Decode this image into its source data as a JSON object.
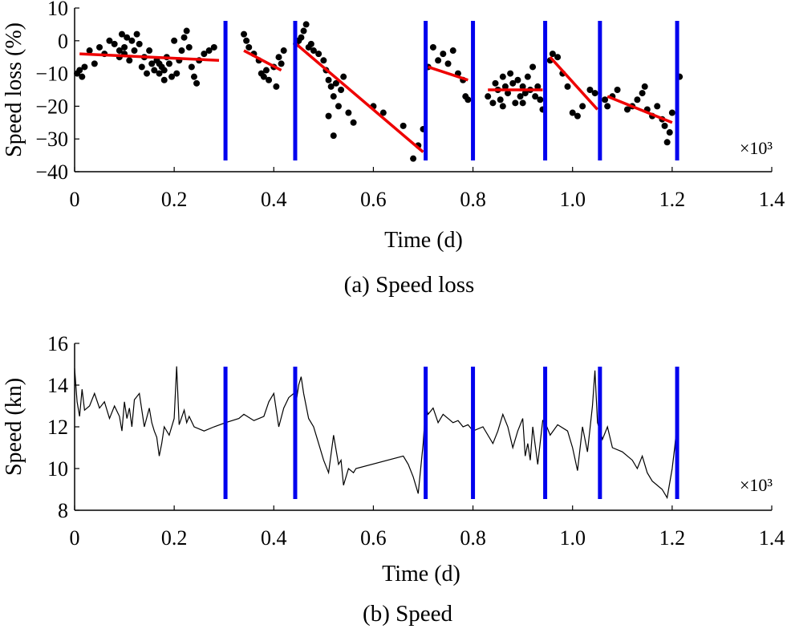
{
  "chart_data": [
    {
      "id": "a",
      "type": "scatter",
      "caption": "(a) Speed loss",
      "xlabel": "Time (d)",
      "ylabel": "Speed loss (%)",
      "x_multiplier": "×10³",
      "xlim": [
        0,
        1.4
      ],
      "ylim": [
        -40,
        10
      ],
      "xticks": [
        "0",
        "0.2",
        "0.4",
        "0.6",
        "0.8",
        "1.0",
        "1.2",
        "1.4"
      ],
      "yticks": [
        "10",
        "0",
        "−10",
        "−20",
        "−30",
        "−40"
      ],
      "segment_boundaries": [
        0.303,
        0.443,
        0.705,
        0.8,
        0.945,
        1.055,
        1.21
      ],
      "boundary_color": "#0000ee",
      "trend_color": "#ee0000",
      "point_color": "#000000",
      "trend_lines": [
        {
          "x": [
            0.01,
            0.29
          ],
          "y": [
            -4,
            -6
          ]
        },
        {
          "x": [
            0.34,
            0.415
          ],
          "y": [
            -3,
            -9
          ]
        },
        {
          "x": [
            0.445,
            0.7
          ],
          "y": [
            -1,
            -34
          ]
        },
        {
          "x": [
            0.71,
            0.79
          ],
          "y": [
            -8,
            -12
          ]
        },
        {
          "x": [
            0.83,
            0.94
          ],
          "y": [
            -15,
            -15
          ]
        },
        {
          "x": [
            0.955,
            1.05
          ],
          "y": [
            -5,
            -21
          ]
        },
        {
          "x": [
            1.07,
            1.2
          ],
          "y": [
            -17,
            -25
          ]
        }
      ],
      "points": [
        [
          0.005,
          -10
        ],
        [
          0.01,
          -9
        ],
        [
          0.015,
          -11
        ],
        [
          0.02,
          -8
        ],
        [
          0.03,
          -3
        ],
        [
          0.04,
          -7
        ],
        [
          0.05,
          -2
        ],
        [
          0.06,
          -4
        ],
        [
          0.07,
          0
        ],
        [
          0.08,
          -1
        ],
        [
          0.09,
          -3
        ],
        [
          0.095,
          2
        ],
        [
          0.1,
          -2
        ],
        [
          0.105,
          1
        ],
        [
          0.11,
          -6
        ],
        [
          0.115,
          0
        ],
        [
          0.12,
          -3
        ],
        [
          0.125,
          2
        ],
        [
          0.13,
          -1
        ],
        [
          0.135,
          -8
        ],
        [
          0.14,
          -5
        ],
        [
          0.145,
          -10
        ],
        [
          0.15,
          -3
        ],
        [
          0.155,
          -7
        ],
        [
          0.16,
          -9
        ],
        [
          0.165,
          -6
        ],
        [
          0.17,
          -10
        ],
        [
          0.175,
          -8
        ],
        [
          0.18,
          -12
        ],
        [
          0.185,
          -5
        ],
        [
          0.19,
          -7
        ],
        [
          0.2,
          0
        ],
        [
          0.205,
          -10
        ],
        [
          0.21,
          -6
        ],
        [
          0.215,
          -3
        ],
        [
          0.22,
          1
        ],
        [
          0.225,
          3
        ],
        [
          0.23,
          -2
        ],
        [
          0.235,
          -8
        ],
        [
          0.24,
          -11
        ],
        [
          0.245,
          -13
        ],
        [
          0.25,
          -6
        ],
        [
          0.26,
          -4
        ],
        [
          0.27,
          -3
        ],
        [
          0.28,
          -2
        ],
        [
          0.09,
          -5
        ],
        [
          0.1,
          -4
        ],
        [
          0.17,
          -7
        ],
        [
          0.18,
          -9
        ],
        [
          0.195,
          -11
        ],
        [
          0.34,
          2
        ],
        [
          0.345,
          0
        ],
        [
          0.35,
          -2
        ],
        [
          0.36,
          -4
        ],
        [
          0.37,
          -6
        ],
        [
          0.375,
          -10
        ],
        [
          0.38,
          -11
        ],
        [
          0.385,
          -9
        ],
        [
          0.39,
          -12
        ],
        [
          0.4,
          -8
        ],
        [
          0.405,
          -14
        ],
        [
          0.41,
          -5
        ],
        [
          0.415,
          -7
        ],
        [
          0.42,
          -3
        ],
        [
          0.445,
          -1
        ],
        [
          0.45,
          0
        ],
        [
          0.455,
          1
        ],
        [
          0.46,
          3
        ],
        [
          0.465,
          5
        ],
        [
          0.47,
          -2
        ],
        [
          0.475,
          -1
        ],
        [
          0.48,
          -3
        ],
        [
          0.49,
          -4
        ],
        [
          0.5,
          -6
        ],
        [
          0.505,
          -9
        ],
        [
          0.51,
          -12
        ],
        [
          0.515,
          -14
        ],
        [
          0.52,
          -17
        ],
        [
          0.525,
          -13
        ],
        [
          0.53,
          -20
        ],
        [
          0.535,
          -15
        ],
        [
          0.54,
          -11
        ],
        [
          0.55,
          -22
        ],
        [
          0.56,
          -25
        ],
        [
          0.52,
          -29
        ],
        [
          0.51,
          -23
        ],
        [
          0.6,
          -20
        ],
        [
          0.62,
          -22
        ],
        [
          0.66,
          -26
        ],
        [
          0.68,
          -36
        ],
        [
          0.69,
          -32
        ],
        [
          0.7,
          -27
        ],
        [
          0.71,
          -8
        ],
        [
          0.72,
          -2
        ],
        [
          0.73,
          -6
        ],
        [
          0.74,
          -4
        ],
        [
          0.75,
          -7
        ],
        [
          0.76,
          -3
        ],
        [
          0.77,
          -10
        ],
        [
          0.78,
          -12
        ],
        [
          0.785,
          -17
        ],
        [
          0.79,
          -18
        ],
        [
          0.83,
          -17
        ],
        [
          0.84,
          -19
        ],
        [
          0.845,
          -13
        ],
        [
          0.85,
          -15
        ],
        [
          0.855,
          -18
        ],
        [
          0.86,
          -11
        ],
        [
          0.865,
          -14
        ],
        [
          0.87,
          -16
        ],
        [
          0.875,
          -10
        ],
        [
          0.88,
          -13
        ],
        [
          0.885,
          -19
        ],
        [
          0.89,
          -12
        ],
        [
          0.895,
          -17
        ],
        [
          0.9,
          -14
        ],
        [
          0.905,
          -16
        ],
        [
          0.91,
          -11
        ],
        [
          0.915,
          -15
        ],
        [
          0.92,
          -8
        ],
        [
          0.925,
          -17
        ],
        [
          0.93,
          -14
        ],
        [
          0.935,
          -18
        ],
        [
          0.94,
          -21
        ],
        [
          0.86,
          -20
        ],
        [
          0.9,
          -19
        ],
        [
          0.955,
          -6
        ],
        [
          0.96,
          -4
        ],
        [
          0.97,
          -5
        ],
        [
          0.98,
          -10
        ],
        [
          0.99,
          -14
        ],
        [
          1.0,
          -22
        ],
        [
          1.01,
          -23
        ],
        [
          1.02,
          -20
        ],
        [
          1.035,
          -15
        ],
        [
          1.045,
          -16
        ],
        [
          1.065,
          -18
        ],
        [
          1.07,
          -20
        ],
        [
          1.08,
          -17
        ],
        [
          1.09,
          -15
        ],
        [
          1.11,
          -21
        ],
        [
          1.12,
          -20
        ],
        [
          1.13,
          -18
        ],
        [
          1.14,
          -16
        ],
        [
          1.145,
          -14
        ],
        [
          1.15,
          -21
        ],
        [
          1.16,
          -23
        ],
        [
          1.17,
          -20
        ],
        [
          1.18,
          -24
        ],
        [
          1.185,
          -26
        ],
        [
          1.19,
          -31
        ],
        [
          1.195,
          -28
        ],
        [
          1.2,
          -22
        ],
        [
          1.215,
          -11
        ]
      ]
    },
    {
      "id": "b",
      "type": "line",
      "caption": "(b) Speed",
      "xlabel": "Time (d)",
      "ylabel": "Speed (kn)",
      "x_multiplier": "×10³",
      "xlim": [
        0,
        1.4
      ],
      "ylim": [
        8,
        16
      ],
      "xticks": [
        "0",
        "0.2",
        "0.4",
        "0.6",
        "0.8",
        "1.0",
        "1.2",
        "1.4"
      ],
      "yticks": [
        "16",
        "14",
        "12",
        "10",
        "8"
      ],
      "segment_boundaries": [
        0.303,
        0.443,
        0.705,
        0.8,
        0.945,
        1.055,
        1.21
      ],
      "boundary_color": "#0000ee",
      "line_color": "#000000",
      "series": [
        {
          "name": "Speed",
          "x": [
            0,
            0.005,
            0.01,
            0.015,
            0.02,
            0.03,
            0.04,
            0.05,
            0.06,
            0.07,
            0.08,
            0.09,
            0.095,
            0.1,
            0.105,
            0.11,
            0.115,
            0.12,
            0.13,
            0.14,
            0.15,
            0.155,
            0.16,
            0.165,
            0.17,
            0.175,
            0.18,
            0.19,
            0.2,
            0.205,
            0.21,
            0.22,
            0.225,
            0.23,
            0.24,
            0.26,
            0.28,
            0.303,
            0.33,
            0.34,
            0.36,
            0.38,
            0.39,
            0.4,
            0.41,
            0.42,
            0.43,
            0.44,
            0.445,
            0.45,
            0.455,
            0.46,
            0.47,
            0.48,
            0.49,
            0.5,
            0.51,
            0.52,
            0.53,
            0.535,
            0.54,
            0.55,
            0.56,
            0.565,
            0.66,
            0.67,
            0.68,
            0.69,
            0.7,
            0.705,
            0.71,
            0.72,
            0.73,
            0.74,
            0.75,
            0.76,
            0.77,
            0.78,
            0.79,
            0.8,
            0.82,
            0.84,
            0.85,
            0.86,
            0.87,
            0.88,
            0.89,
            0.9,
            0.905,
            0.91,
            0.915,
            0.92,
            0.93,
            0.94,
            0.945,
            0.955,
            0.97,
            0.99,
            1.0,
            1.01,
            1.02,
            1.03,
            1.04,
            1.045,
            1.05,
            1.055,
            1.06,
            1.07,
            1.08,
            1.1,
            1.12,
            1.13,
            1.14,
            1.15,
            1.16,
            1.18,
            1.19,
            1.2,
            1.205,
            1.21
          ],
          "y": [
            14.8,
            13.2,
            12.5,
            13.8,
            12.8,
            13.0,
            13.6,
            12.9,
            13.2,
            12.4,
            13.0,
            12.5,
            11.8,
            13.2,
            12.4,
            12.9,
            12.0,
            13.3,
            13.6,
            12.0,
            12.9,
            12.2,
            11.8,
            11.5,
            10.6,
            11.2,
            12.0,
            11.6,
            12.4,
            14.9,
            12.1,
            12.8,
            12.2,
            12.5,
            12.0,
            11.8,
            12.0,
            12.2,
            12.4,
            12.6,
            12.3,
            12.5,
            13.2,
            13.6,
            12.0,
            12.9,
            13.4,
            13.6,
            13.2,
            14.0,
            14.4,
            13.6,
            12.4,
            12.0,
            11.2,
            10.4,
            9.8,
            11.6,
            10.2,
            10.4,
            9.2,
            10.0,
            9.8,
            10.0,
            10.6,
            10.2,
            9.6,
            8.8,
            11.2,
            13.0,
            12.6,
            12.9,
            12.2,
            12.6,
            12.4,
            12.2,
            12.3,
            12.0,
            12.1,
            11.8,
            12.0,
            11.2,
            11.8,
            12.6,
            12.0,
            11.0,
            11.8,
            12.4,
            10.6,
            11.2,
            10.4,
            12.0,
            10.2,
            12.3,
            12.2,
            11.6,
            12.1,
            11.8,
            11.0,
            9.9,
            12.0,
            10.8,
            13.0,
            14.7,
            12.2,
            11.8,
            11.4,
            12.0,
            11.0,
            10.8,
            10.4,
            10.0,
            10.6,
            9.8,
            9.4,
            9.0,
            8.6,
            10.0,
            11.0,
            12.2
          ]
        }
      ]
    }
  ]
}
